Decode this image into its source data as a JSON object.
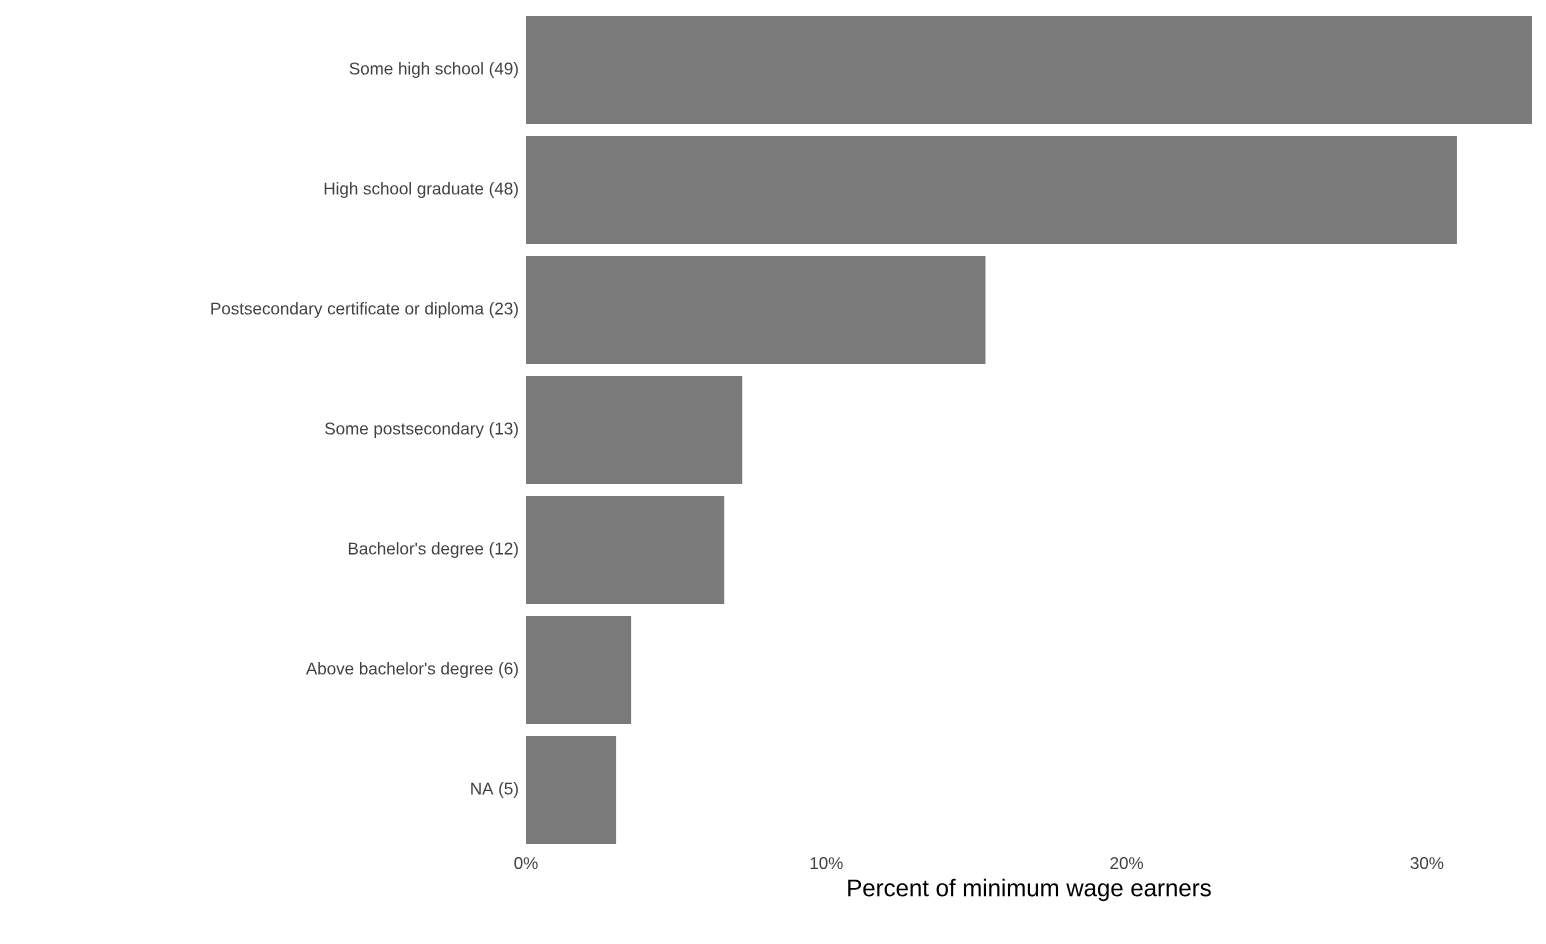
{
  "chart_data": {
    "type": "bar",
    "orientation": "horizontal",
    "categories": [
      "Some high school (49)",
      "High school graduate (48)",
      "Postsecondary certificate or diploma (23)",
      "Some postsecondary (13)",
      "Bachelor's degree (12)",
      "Above bachelor's degree (6)",
      "NA (5)"
    ],
    "values": [
      33.5,
      31.0,
      15.3,
      7.2,
      6.6,
      3.5,
      3.0
    ],
    "color": "#7a7a7a",
    "xlabel": "Percent of minimum wage earners",
    "xlim": [
      0,
      33.5
    ],
    "xticks": [
      {
        "value": 0,
        "label": "0%"
      },
      {
        "value": 10,
        "label": "10%"
      },
      {
        "value": 20,
        "label": "20%"
      },
      {
        "value": 30,
        "label": "30%"
      }
    ]
  }
}
